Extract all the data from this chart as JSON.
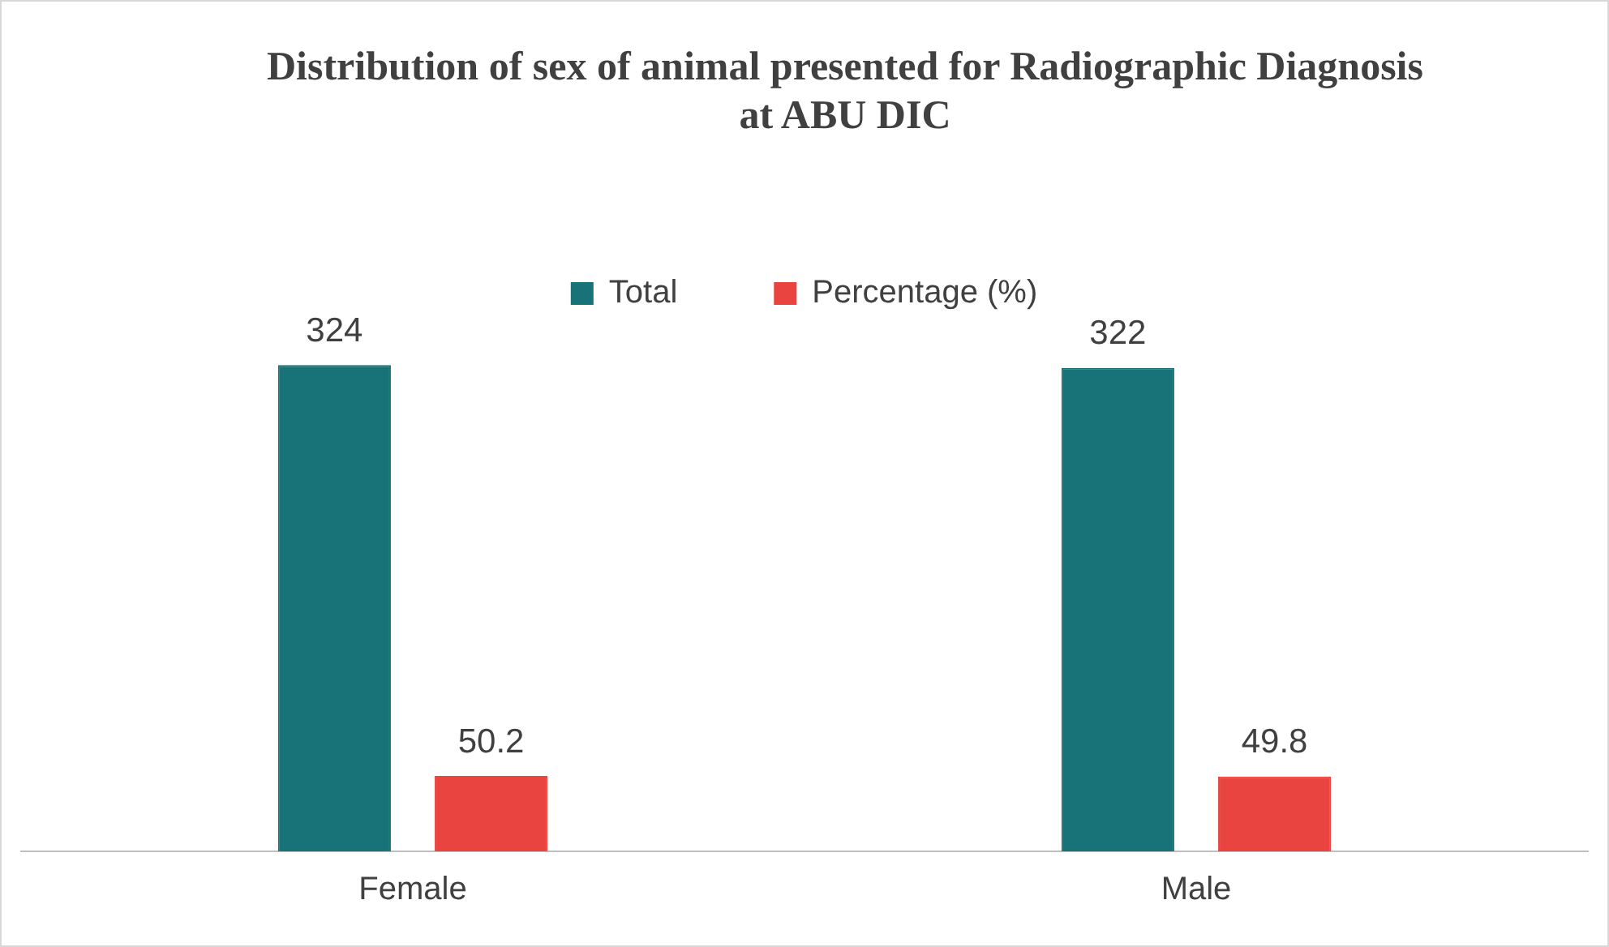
{
  "chart_data": {
    "type": "bar",
    "title": "Distribution of sex of animal presented for Radiographic Diagnosis at ABU DIC",
    "categories": [
      "Female",
      "Male"
    ],
    "series": [
      {
        "name": "Total",
        "color": "#177378",
        "values": [
          324,
          322
        ]
      },
      {
        "name": "Percentage (%)",
        "color": "#e9443f",
        "values": [
          50.2,
          49.8
        ]
      }
    ],
    "data_labels": true,
    "legend": "top",
    "grid": false
  }
}
